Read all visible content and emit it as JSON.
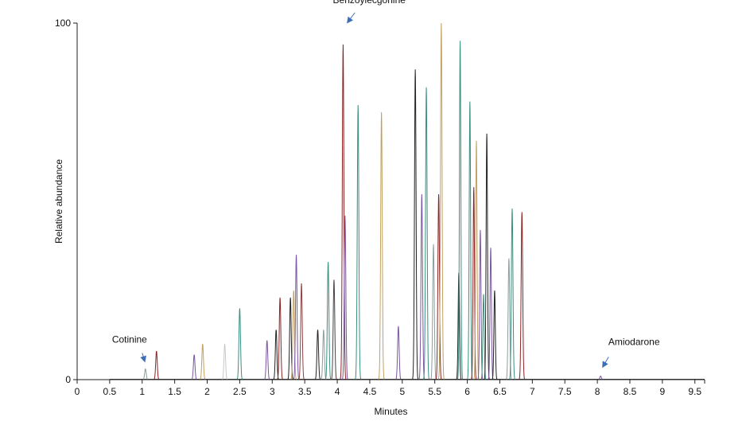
{
  "chart_data": {
    "type": "line",
    "title": "",
    "xlabel": "Minutes",
    "ylabel": "Relative abundance",
    "xlim": [
      0,
      9.65
    ],
    "ylim": [
      0,
      100
    ],
    "x_ticks": [
      "0",
      "0.5",
      "1",
      "1.5",
      "2",
      "2.5",
      "3",
      "3.5",
      "4",
      "4.5",
      "5",
      "5.5",
      "6",
      "6.5",
      "7",
      "7.5",
      "8",
      "8.5",
      "9",
      "9.5"
    ],
    "y_ticks": [
      "0",
      "100"
    ],
    "grid": false,
    "legend": "none",
    "peaks": [
      {
        "rt": 1.05,
        "height": 3,
        "color": "#8c9c9c"
      },
      {
        "rt": 1.22,
        "height": 8,
        "color": "#8b2323"
      },
      {
        "rt": 1.8,
        "height": 7,
        "color": "#7a55a0"
      },
      {
        "rt": 1.93,
        "height": 10,
        "color": "#c2a060"
      },
      {
        "rt": 2.27,
        "height": 10,
        "color": "#c8c8c8"
      },
      {
        "rt": 2.5,
        "height": 20,
        "color": "#3a8f80"
      },
      {
        "rt": 2.92,
        "height": 11,
        "color": "#7a55a0"
      },
      {
        "rt": 3.06,
        "height": 14,
        "color": "#222222"
      },
      {
        "rt": 3.12,
        "height": 23,
        "color": "#8b2323"
      },
      {
        "rt": 3.28,
        "height": 23,
        "color": "#222222"
      },
      {
        "rt": 3.33,
        "height": 25,
        "color": "#c2a060"
      },
      {
        "rt": 3.37,
        "height": 35,
        "color": "#7a55a0"
      },
      {
        "rt": 3.45,
        "height": 27,
        "color": "#8b4040"
      },
      {
        "rt": 3.7,
        "height": 14,
        "color": "#222222"
      },
      {
        "rt": 3.79,
        "height": 14,
        "color": "#8c9c9c"
      },
      {
        "rt": 3.86,
        "height": 33,
        "color": "#3a8f80"
      },
      {
        "rt": 3.95,
        "height": 28,
        "color": "#444444"
      },
      {
        "rt": 4.09,
        "height": 94,
        "color": "#8b2323"
      },
      {
        "rt": 4.12,
        "height": 46,
        "color": "#7a55a0"
      },
      {
        "rt": 4.32,
        "height": 77,
        "color": "#3a8f80"
      },
      {
        "rt": 4.68,
        "height": 75,
        "color": "#c2a060"
      },
      {
        "rt": 4.94,
        "height": 15,
        "color": "#7a55a0"
      },
      {
        "rt": 5.2,
        "height": 87,
        "color": "#222222"
      },
      {
        "rt": 5.3,
        "height": 52,
        "color": "#7a55a0"
      },
      {
        "rt": 5.37,
        "height": 82,
        "color": "#3a8f80"
      },
      {
        "rt": 5.48,
        "height": 38,
        "color": "#8c9c9c"
      },
      {
        "rt": 5.56,
        "height": 52,
        "color": "#8b2323"
      },
      {
        "rt": 5.6,
        "height": 100,
        "color": "#c2a060"
      },
      {
        "rt": 5.87,
        "height": 30,
        "color": "#222222"
      },
      {
        "rt": 5.89,
        "height": 95,
        "color": "#3a8f80"
      },
      {
        "rt": 6.04,
        "height": 78,
        "color": "#3a8f80"
      },
      {
        "rt": 6.1,
        "height": 54,
        "color": "#8b2323"
      },
      {
        "rt": 6.14,
        "height": 67,
        "color": "#c2a060"
      },
      {
        "rt": 6.2,
        "height": 42,
        "color": "#7a55a0"
      },
      {
        "rt": 6.25,
        "height": 24,
        "color": "#3a8f80"
      },
      {
        "rt": 6.3,
        "height": 69,
        "color": "#222222"
      },
      {
        "rt": 6.36,
        "height": 37,
        "color": "#7a55a0"
      },
      {
        "rt": 6.42,
        "height": 25,
        "color": "#222222"
      },
      {
        "rt": 6.64,
        "height": 34,
        "color": "#8c9c9c"
      },
      {
        "rt": 6.69,
        "height": 48,
        "color": "#3a8f80"
      },
      {
        "rt": 6.84,
        "height": 47,
        "color": "#8b2323"
      },
      {
        "rt": 8.05,
        "height": 1,
        "color": "#7a55a0"
      }
    ],
    "annotations": [
      {
        "text": "Cotinine",
        "x": 1.05,
        "y": 3
      },
      {
        "text": "Benzoylecgonine",
        "x": 4.1,
        "y": 94
      },
      {
        "text": "Amiodarone",
        "x": 8.05,
        "y": 1
      }
    ]
  }
}
